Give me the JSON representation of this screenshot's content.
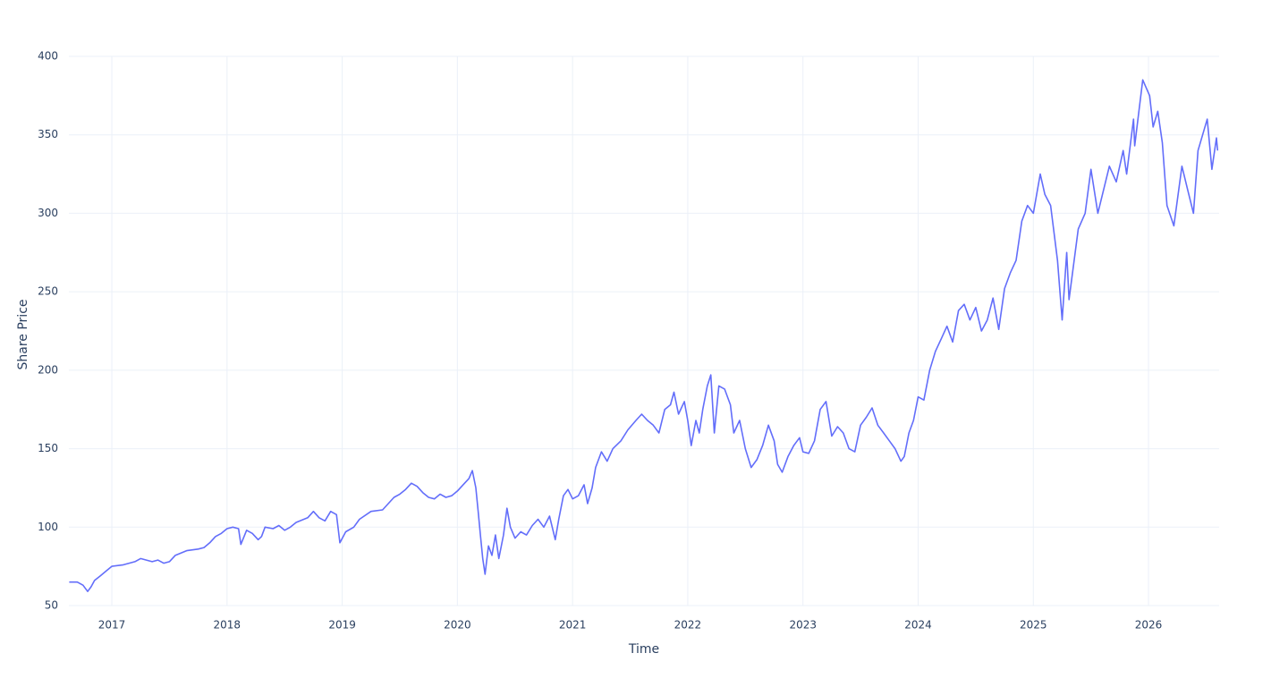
{
  "chart_data": {
    "type": "line",
    "xlabel": "Time",
    "ylabel": "Share Price",
    "xlim": [
      2016.627,
      2026.613
    ],
    "ylim": [
      50,
      400
    ],
    "xticks": [
      2017,
      2018,
      2019,
      2020,
      2021,
      2022,
      2023,
      2024,
      2025,
      2026
    ],
    "yticks": [
      50,
      100,
      150,
      200,
      250,
      300,
      350,
      400
    ],
    "grid": true,
    "series": [
      {
        "name": "Share Price",
        "color": "#636efa",
        "x": [
          2016.63,
          2016.7,
          2016.75,
          2016.79,
          2016.82,
          2016.85,
          2016.9,
          2016.95,
          2017.0,
          2017.1,
          2017.2,
          2017.25,
          2017.35,
          2017.4,
          2017.45,
          2017.5,
          2017.55,
          2017.65,
          2017.75,
          2017.8,
          2017.85,
          2017.9,
          2017.95,
          2018.0,
          2018.05,
          2018.1,
          2018.12,
          2018.17,
          2018.22,
          2018.27,
          2018.3,
          2018.33,
          2018.4,
          2018.45,
          2018.5,
          2018.55,
          2018.6,
          2018.7,
          2018.75,
          2018.8,
          2018.85,
          2018.9,
          2018.95,
          2018.98,
          2019.03,
          2019.1,
          2019.15,
          2019.25,
          2019.35,
          2019.4,
          2019.45,
          2019.5,
          2019.55,
          2019.6,
          2019.65,
          2019.7,
          2019.75,
          2019.8,
          2019.85,
          2019.9,
          2019.95,
          2020.0,
          2020.05,
          2020.1,
          2020.13,
          2020.16,
          2020.18,
          2020.2,
          2020.22,
          2020.24,
          2020.27,
          2020.3,
          2020.33,
          2020.36,
          2020.4,
          2020.43,
          2020.46,
          2020.5,
          2020.55,
          2020.6,
          2020.65,
          2020.7,
          2020.75,
          2020.8,
          2020.85,
          2020.88,
          2020.92,
          2020.96,
          2021.0,
          2021.05,
          2021.1,
          2021.13,
          2021.17,
          2021.2,
          2021.25,
          2021.3,
          2021.35,
          2021.42,
          2021.48,
          2021.55,
          2021.6,
          2021.65,
          2021.7,
          2021.75,
          2021.8,
          2021.85,
          2021.88,
          2021.92,
          2021.97,
          2022.0,
          2022.03,
          2022.07,
          2022.1,
          2022.13,
          2022.17,
          2022.2,
          2022.23,
          2022.27,
          2022.32,
          2022.37,
          2022.4,
          2022.45,
          2022.5,
          2022.55,
          2022.6,
          2022.65,
          2022.7,
          2022.75,
          2022.78,
          2022.82,
          2022.87,
          2022.92,
          2022.97,
          2023.0,
          2023.05,
          2023.1,
          2023.15,
          2023.2,
          2023.25,
          2023.3,
          2023.35,
          2023.4,
          2023.45,
          2023.5,
          2023.55,
          2023.6,
          2023.65,
          2023.7,
          2023.75,
          2023.8,
          2023.85,
          2023.88,
          2023.92,
          2023.96,
          2024.0,
          2024.05,
          2024.1,
          2024.15,
          2024.2,
          2024.25,
          2024.3,
          2024.35,
          2024.4,
          2024.45,
          2024.5,
          2024.55,
          2024.6,
          2024.65,
          2024.7,
          2024.75,
          2024.8,
          2024.85,
          2024.9,
          2024.95,
          2025.0,
          2025.06,
          2025.1,
          2025.15,
          2025.21,
          2025.25,
          2025.29,
          2025.31,
          2025.39,
          2025.45,
          2025.5,
          2025.56,
          2025.66,
          2025.72,
          2025.78,
          2025.81,
          2025.87,
          2025.88,
          2025.95,
          2026.01,
          2026.04,
          2026.08,
          2026.12,
          2026.16,
          2026.22,
          2026.29,
          2026.34,
          2026.39,
          2026.43,
          2026.51,
          2026.55,
          2026.59,
          2026.6
        ],
        "values": [
          65,
          65,
          63,
          59,
          62,
          66,
          69,
          72,
          75,
          76,
          78,
          80,
          78,
          79,
          77,
          78,
          82,
          85,
          86,
          87,
          90,
          94,
          96,
          99,
          100,
          99,
          89,
          98,
          96,
          92,
          94,
          100,
          99,
          101,
          98,
          100,
          103,
          106,
          110,
          106,
          104,
          110,
          108,
          90,
          97,
          100,
          105,
          110,
          111,
          115,
          119,
          121,
          124,
          128,
          126,
          122,
          119,
          118,
          121,
          119,
          120,
          123,
          127,
          131,
          136,
          125,
          110,
          95,
          80,
          70,
          88,
          82,
          95,
          80,
          95,
          112,
          100,
          93,
          97,
          95,
          101,
          105,
          100,
          107,
          92,
          105,
          120,
          124,
          118,
          120,
          127,
          115,
          125,
          138,
          148,
          142,
          150,
          155,
          162,
          168,
          172,
          168,
          165,
          160,
          175,
          178,
          186,
          172,
          180,
          168,
          152,
          168,
          160,
          175,
          190,
          197,
          160,
          190,
          188,
          178,
          160,
          168,
          150,
          138,
          143,
          152,
          165,
          155,
          140,
          135,
          145,
          152,
          157,
          148,
          147,
          155,
          175,
          180,
          158,
          164,
          160,
          150,
          148,
          165,
          170,
          176,
          165,
          160,
          155,
          150,
          142,
          145,
          160,
          168,
          183,
          181,
          200,
          212,
          220,
          228,
          218,
          238,
          242,
          232,
          240,
          225,
          232,
          246,
          226,
          252,
          262,
          270,
          295,
          305,
          300,
          325,
          312,
          305,
          270,
          232,
          275,
          245,
          290,
          300,
          328,
          300,
          330,
          320,
          340,
          325,
          360,
          343,
          385,
          375,
          355,
          365,
          345,
          305,
          292,
          330,
          315,
          300,
          340,
          360,
          328,
          348,
          340
        ]
      }
    ]
  }
}
